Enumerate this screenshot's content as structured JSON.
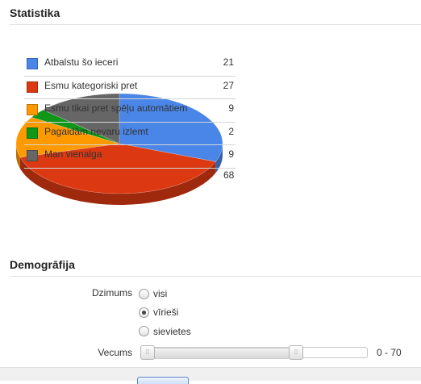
{
  "statistics": {
    "title": "Statistika"
  },
  "chart_data": {
    "type": "pie",
    "categories": [
      "Atbalstu šo ieceri",
      "Esmu kategoriski pret",
      "Esmu tikai pret spēļu automātiem",
      "Pagaidām nevaru izlemt",
      "Man vienalga"
    ],
    "values": [
      21,
      27,
      9,
      2,
      9
    ],
    "colors": [
      "#4a86e8",
      "#dc3912",
      "#ff9900",
      "#109618",
      "#666666"
    ],
    "total": 68,
    "legend_position": "overlay-left"
  },
  "demography": {
    "title": "Demogrāfija",
    "gender_label": "Dzimums",
    "gender_options": [
      {
        "label": "visi",
        "checked": false
      },
      {
        "label": "vīrieši",
        "checked": true
      },
      {
        "label": "sievietes",
        "checked": false
      }
    ],
    "age_label": "Vecums",
    "age_range_text": "0 - 70",
    "age_min": 0,
    "age_max": 70
  }
}
